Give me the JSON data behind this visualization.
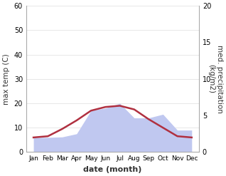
{
  "months": [
    "Jan",
    "Feb",
    "Mar",
    "Apr",
    "May",
    "Jun",
    "Jul",
    "Aug",
    "Sep",
    "Oct",
    "Nov",
    "Dec"
  ],
  "x": [
    1,
    2,
    3,
    4,
    5,
    6,
    7,
    8,
    9,
    10,
    11,
    12
  ],
  "temperature": [
    6.0,
    6.5,
    9.5,
    13.0,
    17.0,
    18.5,
    19.0,
    17.5,
    13.5,
    10.0,
    6.5,
    6.0
  ],
  "precipitation": [
    6.0,
    6.0,
    6.2,
    7.5,
    17.0,
    18.0,
    20.0,
    14.0,
    14.0,
    15.5,
    9.0,
    9.0
  ],
  "temp_color": "#b03040",
  "precip_color": "#c0c8f0",
  "ylim_left": [
    0,
    20
  ],
  "ylim_right": [
    0,
    20
  ],
  "xlabel": "date (month)",
  "ylabel_left": "max temp (C)",
  "ylabel_right": "med. precipitation\n(kg/m2)",
  "bg_color": "#ffffff",
  "grid_color": "#dddddd",
  "temp_linewidth": 1.8
}
